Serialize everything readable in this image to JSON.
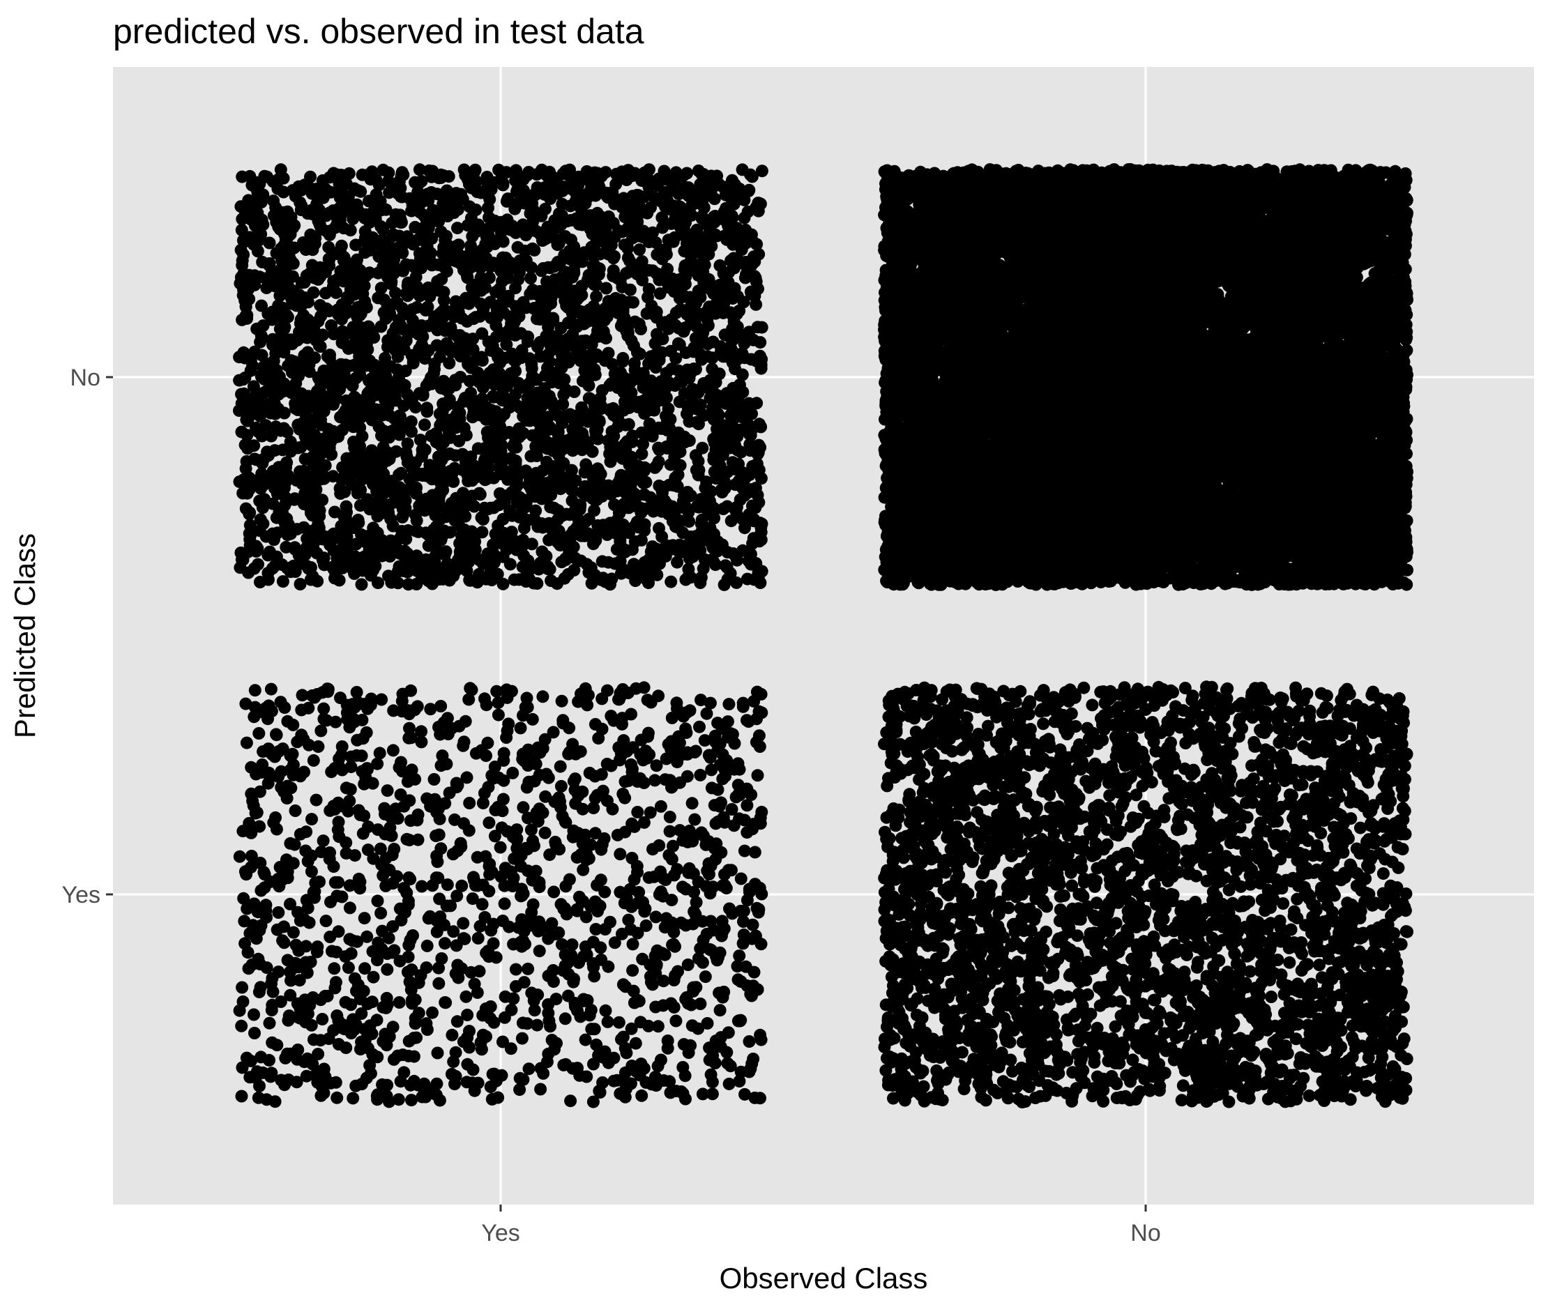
{
  "chart_data": {
    "type": "scatter",
    "title": "predicted vs. observed in test data",
    "xlabel": "Observed Class",
    "ylabel": "Predicted Class",
    "x_categories": [
      "Yes",
      "No"
    ],
    "y_categories": [
      "Yes",
      "No"
    ],
    "jitter": 0.4,
    "grid": true,
    "colors": {
      "panel": "#e5e5e5",
      "grid": "#ffffff",
      "point": "#000000",
      "tick_label": "#4d4d4d"
    },
    "cells": [
      {
        "observed": "Yes",
        "predicted": "No",
        "count": 3500
      },
      {
        "observed": "No",
        "predicted": "No",
        "count": 14000
      },
      {
        "observed": "Yes",
        "predicted": "Yes",
        "count": 1400
      },
      {
        "observed": "No",
        "predicted": "Yes",
        "count": 3500
      }
    ]
  }
}
